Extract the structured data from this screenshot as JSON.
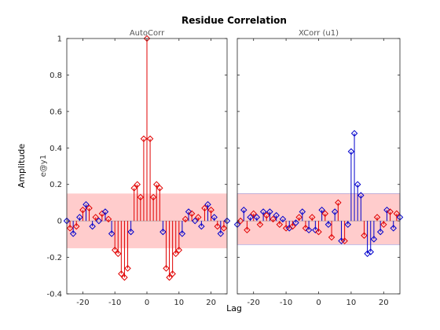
{
  "figure": {
    "title": "Residue Correlation",
    "ylabel_outer": "Amplitude",
    "ylabel_inner": "e@y1",
    "xlabel": "Lag"
  },
  "colors": {
    "stem_red": "#e00000",
    "stem_blue": "#0000cc",
    "band_fill": "#ffcccc",
    "axis": "#262626",
    "subtitle": "#555555"
  },
  "chart_data": [
    {
      "type": "stem",
      "title": "AutoCorr",
      "xlim": [
        -25,
        25
      ],
      "ylim": [
        -0.4,
        1
      ],
      "xticks": [
        -20,
        -10,
        0,
        10,
        20
      ],
      "yticks": [
        -0.4,
        -0.2,
        0,
        0.2,
        0.4,
        0.6,
        0.8,
        1
      ],
      "confidence_band": [
        -0.15,
        0.15
      ],
      "x": [
        -25,
        -24,
        -23,
        -22,
        -21,
        -20,
        -19,
        -18,
        -17,
        -16,
        -15,
        -14,
        -13,
        -12,
        -11,
        -10,
        -9,
        -8,
        -7,
        -6,
        -5,
        -4,
        -3,
        -2,
        -1,
        0,
        1,
        2,
        3,
        4,
        5,
        6,
        7,
        8,
        9,
        10,
        11,
        12,
        13,
        14,
        15,
        16,
        17,
        18,
        19,
        20,
        21,
        22,
        23,
        24,
        25
      ],
      "values": [
        0.0,
        -0.04,
        -0.07,
        -0.03,
        0.02,
        0.06,
        0.09,
        0.07,
        -0.03,
        0.02,
        0.0,
        0.04,
        0.05,
        0.01,
        -0.07,
        -0.16,
        -0.18,
        -0.29,
        -0.31,
        -0.26,
        -0.06,
        0.18,
        0.2,
        0.13,
        0.45,
        1.0,
        0.45,
        0.13,
        0.2,
        0.18,
        -0.06,
        -0.26,
        -0.31,
        -0.29,
        -0.18,
        -0.16,
        -0.07,
        0.01,
        0.05,
        0.04,
        0.0,
        0.02,
        -0.03,
        0.07,
        0.09,
        0.06,
        0.02,
        -0.03,
        -0.07,
        -0.04,
        0.0
      ],
      "grid": false
    },
    {
      "type": "stem",
      "title": "XCorr (u1)",
      "xlim": [
        -25,
        25
      ],
      "ylim": [
        -0.4,
        1
      ],
      "xticks": [
        -20,
        -10,
        0,
        10,
        20
      ],
      "yticks": [
        -0.4,
        -0.2,
        0,
        0.2,
        0.4,
        0.6,
        0.8,
        1
      ],
      "confidence_band": [
        -0.13,
        0.15
      ],
      "x": [
        -25,
        -24,
        -23,
        -22,
        -21,
        -20,
        -19,
        -18,
        -17,
        -16,
        -15,
        -14,
        -13,
        -12,
        -11,
        -10,
        -9,
        -8,
        -7,
        -6,
        -5,
        -4,
        -3,
        -2,
        -1,
        0,
        1,
        2,
        3,
        4,
        5,
        6,
        7,
        8,
        9,
        10,
        11,
        12,
        13,
        14,
        15,
        16,
        17,
        18,
        19,
        20,
        21,
        22,
        23,
        24,
        25
      ],
      "values": [
        -0.02,
        0.0,
        0.06,
        -0.05,
        0.02,
        0.04,
        0.02,
        -0.02,
        0.05,
        0.03,
        0.05,
        0.01,
        0.03,
        -0.02,
        0.01,
        -0.04,
        -0.04,
        -0.03,
        -0.01,
        0.02,
        0.05,
        -0.04,
        -0.05,
        0.02,
        -0.05,
        -0.06,
        0.06,
        0.04,
        -0.02,
        -0.09,
        0.05,
        0.1,
        -0.11,
        -0.11,
        -0.02,
        0.38,
        0.48,
        0.2,
        0.14,
        -0.08,
        -0.18,
        -0.17,
        -0.1,
        0.02,
        -0.06,
        -0.02,
        0.06,
        0.05,
        -0.04,
        0.04,
        0.02
      ]
    }
  ]
}
